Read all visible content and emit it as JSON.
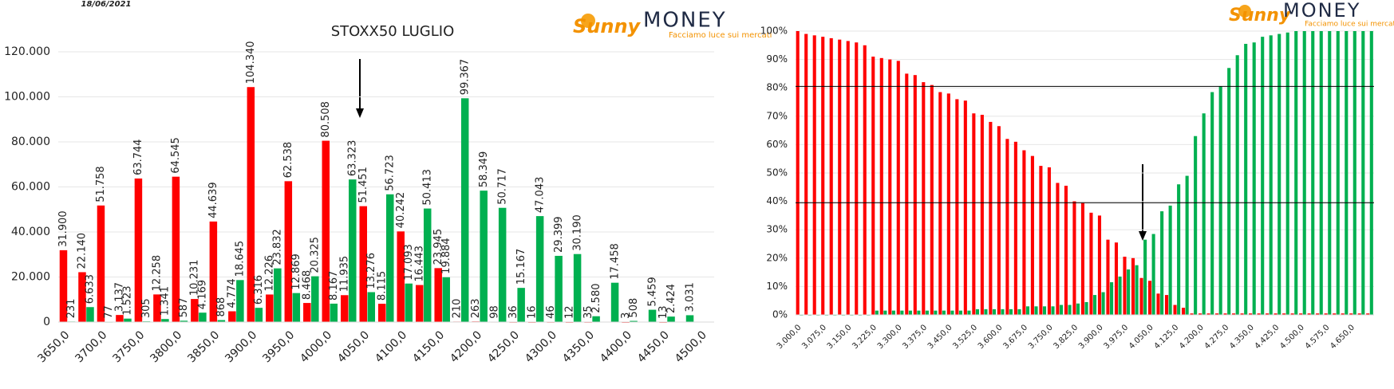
{
  "header": {
    "date": "18/06/2021"
  },
  "logos": [
    {
      "brand1": "Sunny",
      "brand2": "MONEY",
      "tagline": "Facciamo luce sui mercati"
    },
    {
      "brand1": "Sunny",
      "brand2": "MONEY",
      "tagline": "Facciamo luce sui mercati"
    }
  ],
  "chart_data": [
    {
      "type": "bar",
      "title": "STOXX50 LUGLIO",
      "categories": [
        "3650,0",
        null,
        "3700,0",
        null,
        "3750,0",
        null,
        "3800,0",
        null,
        "3850,0",
        null,
        "3900,0",
        null,
        "3950,0",
        null,
        "4000,0",
        null,
        "4050,0",
        null,
        "4100,0",
        null,
        "4150,0",
        null,
        "4200,0",
        null,
        "4250,0",
        null,
        "4300,0",
        null,
        "4350,0",
        null,
        "4400,0",
        null,
        "4450,0",
        null,
        "4500,0"
      ],
      "series": [
        {
          "color": "#ff0000",
          "values": [
            31900,
            22140,
            51758,
            3137,
            63744,
            12258,
            64545,
            10231,
            44639,
            4774,
            104340,
            12226,
            62538,
            8468,
            80508,
            11935,
            51451,
            8115,
            40242,
            16443,
            23945,
            210,
            263,
            98,
            36,
            16,
            46,
            12,
            35,
            null,
            3,
            null,
            13,
            null,
            null
          ],
          "value_labels": [
            "31.900",
            "22.140",
            "51.758",
            "3.137",
            "63.744",
            "12.258",
            "64.545",
            "10.231",
            "44.639",
            "4.774",
            "104.340",
            "12.226",
            "62.538",
            "8.468",
            "80.508",
            "11.935",
            "51.451",
            "8.115",
            "40.242",
            "16.443",
            "23.945",
            "210",
            "263",
            "98",
            "36",
            "16",
            "46",
            "12",
            "35",
            null,
            "3",
            null,
            "13",
            null,
            null
          ]
        },
        {
          "color": "#00b050",
          "values": [
            231,
            6633,
            77,
            1523,
            305,
            1341,
            587,
            4169,
            868,
            18645,
            6316,
            23832,
            12869,
            20325,
            8167,
            63323,
            13276,
            56723,
            17093,
            50413,
            19884,
            99367,
            58349,
            50717,
            15167,
            47043,
            29399,
            30190,
            2580,
            17458,
            508,
            5459,
            2424,
            3031,
            null
          ],
          "value_labels": [
            "231",
            "6.633",
            "77",
            "1.523",
            "305",
            "1.341",
            "587",
            "4.169",
            "868",
            "18.645",
            "6.316",
            "23.832",
            "12.869",
            "20.325",
            "8.167",
            "63.323",
            "13.276",
            "56.723",
            "17.093",
            "50.413",
            "19.884",
            "99.367",
            "58.349",
            "50.717",
            "15.167",
            "47.043",
            "29.399",
            "30.190",
            "2.580",
            "17.458",
            "508",
            "5.459",
            "2.424",
            "3.031",
            null
          ]
        }
      ],
      "ylim": [
        0,
        120000
      ],
      "yticks": [
        0,
        {
          "value": 20000,
          "label": "20.000"
        },
        {
          "value": 40000,
          "label": "40.000"
        },
        {
          "value": 60000,
          "label": "60.000"
        },
        {
          "value": 80000,
          "label": "80.000"
        },
        {
          "value": 100000,
          "label": "100.000"
        },
        {
          "value": 120000,
          "label": "120.000"
        }
      ],
      "grid": true
    },
    {
      "type": "bar",
      "categories": [
        "3.000,0",
        null,
        null,
        "3.075,0",
        null,
        null,
        "3.150,0",
        null,
        null,
        "3.225,0",
        null,
        null,
        "3.300,0",
        null,
        null,
        "3.375,0",
        null,
        null,
        "3.450,0",
        null,
        null,
        "3.525,0",
        null,
        null,
        "3.600,0",
        null,
        null,
        "3.675,0",
        null,
        null,
        "3.750,0",
        null,
        null,
        "3.825,0",
        null,
        null,
        "3.900,0",
        null,
        null,
        "3.975,0",
        null,
        null,
        "4.050,0",
        null,
        null,
        "4.125,0",
        null,
        null,
        "4.200,0",
        null,
        null,
        "4.275,0",
        null,
        null,
        "4.350,0",
        null,
        null,
        "4.425,0",
        null,
        null,
        "4.500,0",
        null,
        null,
        "4.575,0",
        null,
        null,
        "4.650,0",
        null,
        null
      ],
      "series": [
        {
          "color": "#ff0000",
          "values": [
            100,
            99,
            98.5,
            98,
            97.5,
            97,
            96.5,
            96,
            95,
            91,
            90.5,
            90,
            89.5,
            85,
            84.5,
            82,
            81,
            78.5,
            78,
            76,
            75.5,
            71,
            70.5,
            68,
            66.5,
            62,
            61,
            58,
            56,
            52.5,
            52,
            46.5,
            45.5,
            40,
            39.5,
            36,
            35,
            26.5,
            25.5,
            20.5,
            20,
            13,
            12,
            7.5,
            7,
            3.5,
            2.5,
            0.5,
            0.5,
            0.5,
            0.5,
            0.5,
            0.5,
            0.5,
            0.5,
            0.5,
            0.5,
            0.5,
            0.5,
            0.5,
            0.5,
            0.5,
            0.5,
            0.5,
            0.5,
            0.5,
            0.5,
            0.5,
            0.5
          ]
        },
        {
          "color": "#00b050",
          "values": [
            0,
            0,
            0,
            0,
            0,
            0,
            0,
            0,
            0,
            1.5,
            1.5,
            1.5,
            1.5,
            1.5,
            1.5,
            1.5,
            1.5,
            1.5,
            1.5,
            1.5,
            1.5,
            2,
            2,
            2,
            2,
            2,
            2,
            3,
            3,
            3,
            3,
            3.5,
            3.5,
            4,
            4.5,
            7,
            8,
            11.5,
            13.5,
            16,
            17.5,
            26.5,
            28.5,
            36.5,
            38.5,
            46,
            49,
            63,
            71,
            78.5,
            80.5,
            87,
            91.5,
            95.5,
            96,
            98,
            98.5,
            99,
            99.5,
            100,
            100,
            100,
            100,
            100,
            100,
            100,
            100,
            100,
            100
          ]
        }
      ],
      "ylim": [
        0,
        100
      ],
      "yticks": [
        {
          "value": 0,
          "label": "0%"
        },
        {
          "value": 10,
          "label": "10%"
        },
        {
          "value": 20,
          "label": "20%"
        },
        {
          "value": 30,
          "label": "30%"
        },
        {
          "value": 40,
          "label": "40%"
        },
        {
          "value": 50,
          "label": "50%"
        },
        {
          "value": 60,
          "label": "60%"
        },
        {
          "value": 70,
          "label": "70%"
        },
        {
          "value": 80,
          "label": "80%"
        },
        {
          "value": 90,
          "label": "90%"
        },
        {
          "value": 100,
          "label": "100%"
        }
      ],
      "hlines": [
        80.5,
        39.5
      ],
      "grid": true
    }
  ]
}
